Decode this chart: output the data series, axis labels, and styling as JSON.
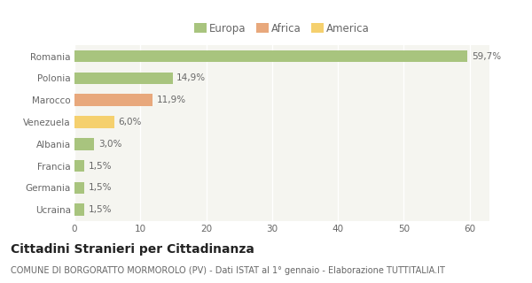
{
  "categories": [
    "Romania",
    "Polonia",
    "Marocco",
    "Venezuela",
    "Albania",
    "Francia",
    "Germania",
    "Ucraina"
  ],
  "values": [
    59.7,
    14.9,
    11.9,
    6.0,
    3.0,
    1.5,
    1.5,
    1.5
  ],
  "colors": [
    "#a8c47e",
    "#a8c47e",
    "#e8a87c",
    "#f5d06e",
    "#a8c47e",
    "#a8c47e",
    "#a8c47e",
    "#a8c47e"
  ],
  "labels": [
    "59,7%",
    "14,9%",
    "11,9%",
    "6,0%",
    "3,0%",
    "1,5%",
    "1,5%",
    "1,5%"
  ],
  "legend_items": [
    {
      "label": "Europa",
      "color": "#a8c47e"
    },
    {
      "label": "Africa",
      "color": "#e8a87c"
    },
    {
      "label": "America",
      "color": "#f5d06e"
    }
  ],
  "xlim": [
    0,
    63
  ],
  "xticks": [
    0,
    10,
    20,
    30,
    40,
    50,
    60
  ],
  "title": "Cittadini Stranieri per Cittadinanza",
  "subtitle": "COMUNE DI BORGORATTO MORMOROLO (PV) - Dati ISTAT al 1° gennaio - Elaborazione TUTTITALIA.IT",
  "background_color": "#ffffff",
  "plot_bg_color": "#f5f5f0",
  "grid_color": "#ffffff",
  "bar_height": 0.55,
  "title_fontsize": 10,
  "subtitle_fontsize": 7,
  "label_fontsize": 7.5,
  "tick_fontsize": 7.5,
  "legend_fontsize": 8.5
}
